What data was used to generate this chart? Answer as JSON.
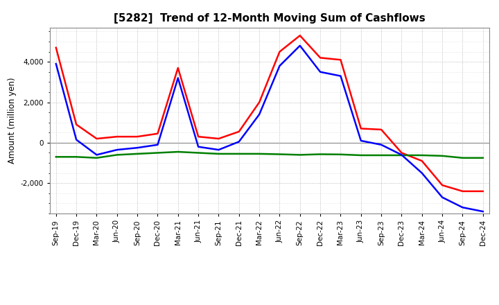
{
  "title": "[5282]  Trend of 12-Month Moving Sum of Cashflows",
  "ylabel": "Amount (million yen)",
  "x_labels": [
    "Sep-19",
    "Dec-19",
    "Mar-20",
    "Jun-20",
    "Sep-20",
    "Dec-20",
    "Mar-21",
    "Jun-21",
    "Sep-21",
    "Dec-21",
    "Mar-22",
    "Jun-22",
    "Sep-22",
    "Dec-22",
    "Mar-23",
    "Jun-23",
    "Sep-23",
    "Dec-23",
    "Mar-24",
    "Jun-24",
    "Sep-24",
    "Dec-24"
  ],
  "operating_cashflow": [
    4700,
    900,
    200,
    300,
    300,
    450,
    3700,
    300,
    200,
    550,
    2000,
    4500,
    5300,
    4200,
    4100,
    700,
    650,
    -500,
    -900,
    -2100,
    -2400,
    -2400
  ],
  "investing_cashflow": [
    -700,
    -700,
    -750,
    -600,
    -550,
    -500,
    -450,
    -500,
    -550,
    -550,
    -550,
    -570,
    -600,
    -570,
    -580,
    -620,
    -620,
    -620,
    -620,
    -650,
    -750,
    -750
  ],
  "free_cashflow": [
    3900,
    150,
    -600,
    -350,
    -250,
    -100,
    3200,
    -200,
    -350,
    50,
    1400,
    3800,
    4800,
    3500,
    3300,
    100,
    -100,
    -600,
    -1500,
    -2700,
    -3200,
    -3400
  ],
  "operating_color": "#FF0000",
  "investing_color": "#008000",
  "free_color": "#0000FF",
  "ylim": [
    -3500,
    5700
  ],
  "yticks": [
    -2000,
    0,
    2000,
    4000
  ],
  "bg_color": "#FFFFFF",
  "grid_color": "#AAAAAA",
  "linewidth": 1.8
}
